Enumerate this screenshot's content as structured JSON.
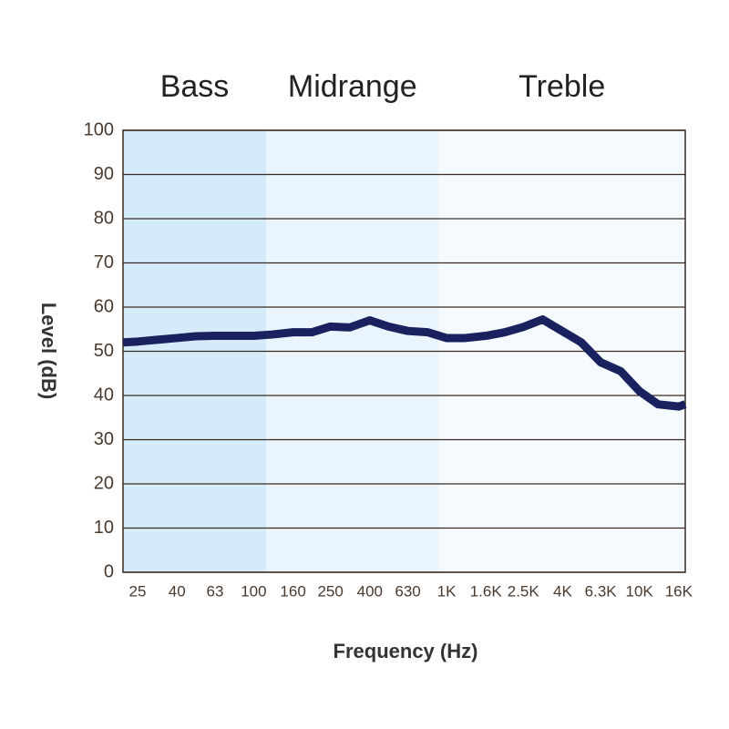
{
  "chart_data": {
    "type": "line",
    "x_label": "Frequency (Hz)",
    "y_label": "Level (dB)",
    "x_scale": "log",
    "xlim": [
      21,
      17300
    ],
    "ylim": [
      0,
      100
    ],
    "xticks": [
      25,
      40,
      63,
      100,
      160,
      250,
      400,
      630,
      {
        "value": 1000,
        "label": "1K"
      },
      {
        "value": 1600,
        "label": "1.6K"
      },
      {
        "value": 2500,
        "label": "2.5K"
      },
      {
        "value": 4000,
        "label": "4K"
      },
      {
        "value": 6300,
        "label": "6.3K"
      },
      {
        "value": 10000,
        "label": "10K"
      },
      {
        "value": 16000,
        "label": "16K"
      }
    ],
    "yticks": [
      0,
      10,
      20,
      30,
      40,
      50,
      60,
      70,
      80,
      90,
      100
    ],
    "grid": true,
    "bands": [
      {
        "label": "Bass",
        "from": 21,
        "to": 116,
        "color": "#d6ebfa"
      },
      {
        "label": "Midrange",
        "from": 116,
        "to": 911,
        "color": "#e9f4fc"
      },
      {
        "label": "Treble",
        "from": 911,
        "to": 17300,
        "color": "#f5fafe"
      }
    ],
    "series": [
      {
        "name": "Level",
        "color": "#19215e",
        "x": [
          21,
          25,
          31.5,
          40,
          50,
          63,
          80,
          100,
          125,
          160,
          200,
          250,
          315,
          400,
          500,
          630,
          800,
          1000,
          1250,
          1600,
          2000,
          2500,
          3150,
          4000,
          5000,
          6300,
          8000,
          10000,
          12500,
          16000,
          17300
        ],
        "values": [
          52,
          52.2,
          52.6,
          53,
          53.4,
          53.5,
          53.5,
          53.5,
          53.8,
          54.3,
          54.3,
          55.6,
          55.4,
          57,
          55.6,
          54.6,
          54.3,
          53,
          53,
          53.5,
          54.3,
          55.5,
          57.2,
          54.5,
          52,
          47.5,
          45.5,
          41,
          38,
          37.5,
          38
        ]
      }
    ]
  }
}
